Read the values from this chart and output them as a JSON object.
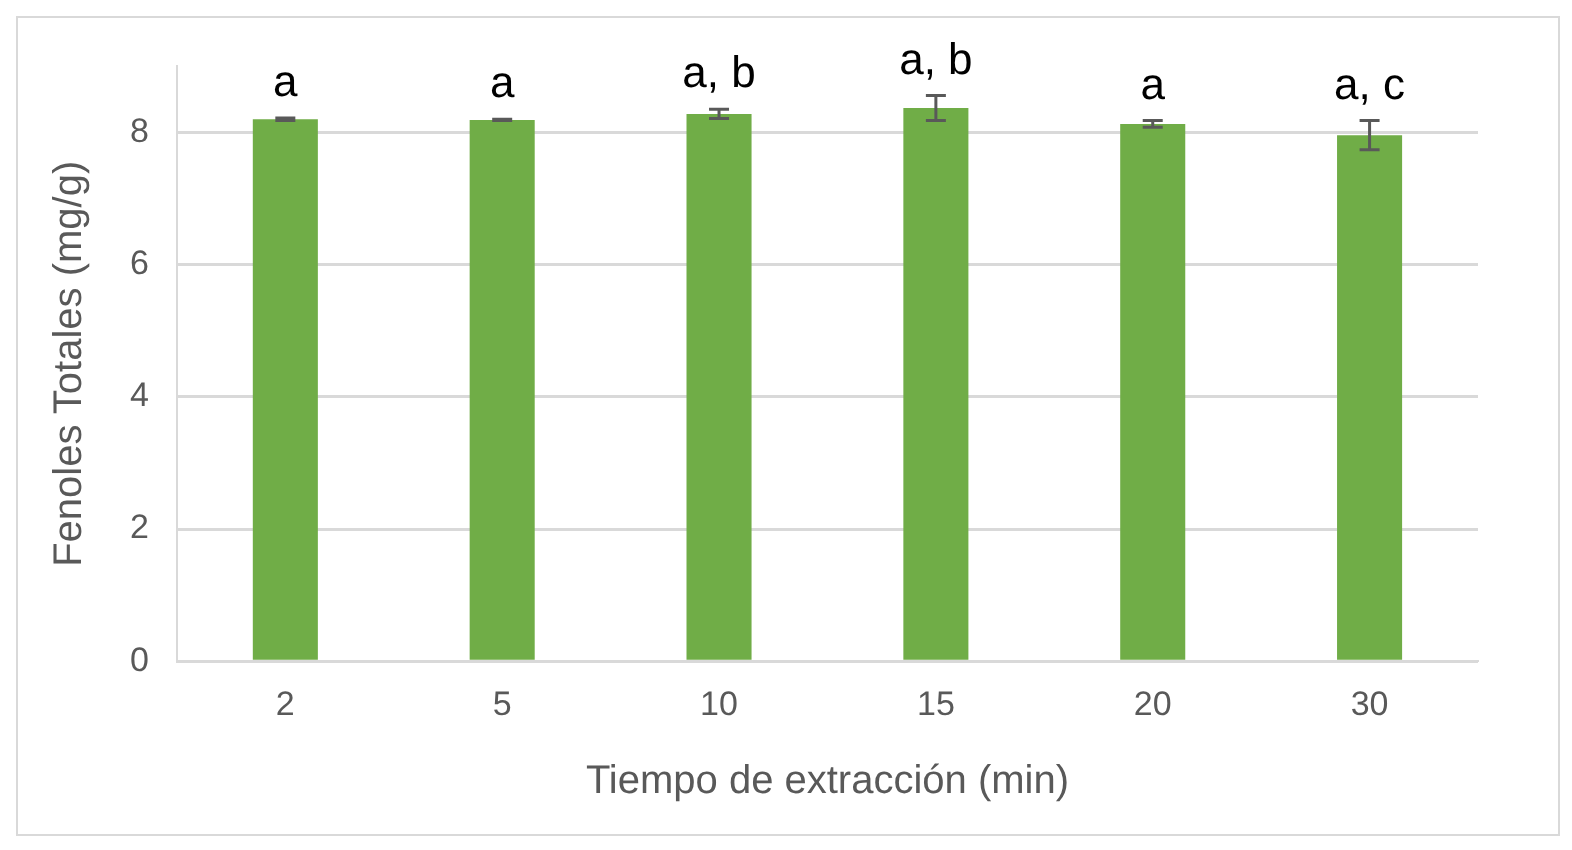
{
  "chart_data": {
    "type": "bar",
    "xlabel": "Tiempo de extracción (min)",
    "ylabel": "Fenoles Totales (mg/g)",
    "categories": [
      "2",
      "5",
      "10",
      "15",
      "20",
      "30"
    ],
    "values": [
      8.2,
      8.19,
      8.28,
      8.37,
      8.13,
      7.96
    ],
    "errors": [
      0.02,
      0.01,
      0.07,
      0.19,
      0.05,
      0.22
    ],
    "color": "#70ad47",
    "ylim": [
      0,
      9
    ],
    "yticks": [
      0,
      2,
      4,
      6,
      8
    ],
    "grid": "y",
    "legend": false,
    "annotations": [
      {
        "text": "a",
        "x": "2",
        "y": 8.22
      },
      {
        "text": "a",
        "x": "5",
        "y": 8.2
      },
      {
        "text": "a, b",
        "x": "10",
        "y": 8.35
      },
      {
        "text": "a, b",
        "x": "15",
        "y": 8.56
      },
      {
        "text": "a",
        "x": "20",
        "y": 8.18
      },
      {
        "text": "a, c",
        "x": "30",
        "y": 8.18
      }
    ]
  }
}
